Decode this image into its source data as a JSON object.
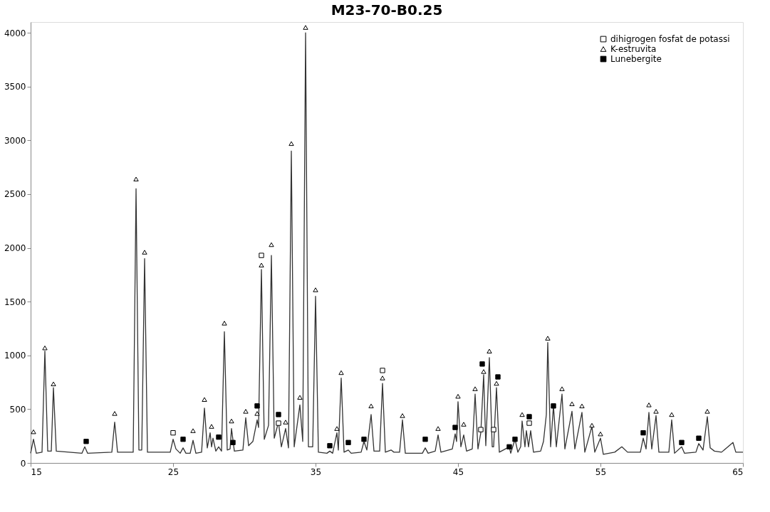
{
  "chart_data": {
    "type": "line",
    "title": "M23-70-B0.25",
    "xlim": [
      15,
      65
    ],
    "xticks": [
      15,
      25,
      35,
      45,
      55,
      65
    ],
    "ylim": [
      0,
      4100
    ],
    "yticks": [
      0,
      500,
      1000,
      1500,
      2000,
      2500,
      3000,
      3500,
      4000
    ],
    "grid": false,
    "legend": "top right",
    "series": [
      {
        "color": "#333333",
        "marker": "none",
        "x": [
          15.0,
          15.2,
          15.4,
          15.8,
          16.0,
          16.2,
          16.45,
          16.6,
          16.8,
          18.6,
          18.8,
          19.0,
          20.7,
          20.9,
          21.1,
          22.2,
          22.4,
          22.6,
          22.8,
          23.0,
          23.2,
          24.8,
          25.0,
          25.2,
          25.5,
          25.7,
          25.9,
          26.2,
          26.4,
          26.6,
          27.0,
          27.2,
          27.4,
          27.6,
          27.7,
          27.8,
          28.0,
          28.2,
          28.4,
          28.6,
          28.8,
          29.0,
          29.1,
          29.3,
          29.9,
          30.1,
          30.3,
          30.6,
          30.9,
          31.0,
          31.2,
          31.4,
          31.7,
          31.9,
          32.1,
          32.4,
          32.6,
          32.9,
          33.1,
          33.3,
          33.5,
          33.9,
          34.1,
          34.3,
          34.5,
          34.8,
          35.0,
          35.2,
          35.8,
          36.0,
          36.2,
          36.5,
          36.6,
          36.8,
          37.0,
          37.3,
          37.5,
          38.2,
          38.4,
          38.6,
          38.9,
          39.1,
          39.5,
          39.7,
          39.9,
          40.3,
          40.5,
          40.9,
          41.1,
          41.3,
          42.5,
          42.7,
          42.9,
          43.4,
          43.6,
          43.8,
          44.6,
          44.8,
          44.9,
          45.0,
          45.2,
          45.4,
          45.6,
          46.0,
          46.2,
          46.4,
          46.6,
          46.8,
          46.95,
          47.2,
          47.4,
          47.5,
          47.7,
          47.9,
          48.6,
          48.7,
          49.0,
          49.2,
          49.4,
          49.5,
          49.7,
          49.8,
          49.95,
          50.1,
          50.3,
          50.8,
          51.0,
          51.2,
          51.3,
          51.5,
          51.7,
          51.9,
          52.3,
          52.5,
          53.0,
          53.2,
          53.7,
          53.9,
          54.4,
          54.6,
          55.0,
          55.2,
          56.0,
          56.5,
          56.9,
          57.8,
          58.0,
          58.2,
          58.4,
          58.6,
          58.9,
          59.1,
          59.8,
          60.0,
          60.2,
          60.7,
          60.9,
          61.7,
          61.9,
          62.2,
          62.5,
          62.7,
          63.0,
          63.5,
          64.3,
          64.5,
          65.0
        ],
        "values": [
          90,
          220,
          90,
          100,
          1040,
          110,
          110,
          700,
          110,
          90,
          150,
          90,
          100,
          380,
          100,
          100,
          2550,
          120,
          120,
          1900,
          100,
          100,
          220,
          130,
          90,
          140,
          90,
          90,
          210,
          90,
          100,
          510,
          140,
          280,
          150,
          230,
          110,
          150,
          110,
          1220,
          120,
          130,
          320,
          110,
          120,
          420,
          160,
          200,
          400,
          330,
          1800,
          220,
          350,
          1930,
          230,
          380,
          150,
          320,
          140,
          2900,
          150,
          540,
          200,
          4000,
          150,
          150,
          1550,
          100,
          90,
          110,
          90,
          280,
          120,
          790,
          100,
          120,
          90,
          100,
          200,
          120,
          450,
          110,
          110,
          740,
          100,
          120,
          100,
          100,
          400,
          90,
          90,
          140,
          90,
          110,
          260,
          100,
          130,
          270,
          200,
          570,
          150,
          260,
          110,
          130,
          640,
          130,
          280,
          820,
          160,
          980,
          150,
          150,
          700,
          100,
          150,
          90,
          220,
          100,
          150,
          390,
          150,
          300,
          150,
          300,
          100,
          110,
          200,
          450,
          1120,
          150,
          530,
          150,
          640,
          130,
          480,
          130,
          470,
          100,
          340,
          100,
          230,
          80,
          100,
          150,
          100,
          100,
          230,
          130,
          470,
          130,
          440,
          100,
          100,
          400,
          90,
          150,
          90,
          100,
          180,
          120,
          430,
          140,
          110,
          100,
          190,
          100,
          100
        ]
      },
      {
        "type": "scatter",
        "name": "dihigrogen fosfat de potassi",
        "color": "#ffffff",
        "marker": "square",
        "x": [
          25.0,
          31.2,
          32.4,
          39.7,
          46.6,
          47.5,
          50.0
        ],
        "values": [
          280,
          1930,
          370,
          860,
          310,
          310,
          370
        ]
      },
      {
        "type": "scatter",
        "name": "K-estruvita",
        "color": "#ffffff",
        "marker": "triangle",
        "x": [
          15.2,
          16.0,
          16.6,
          20.9,
          22.4,
          23.0,
          26.4,
          27.2,
          27.7,
          28.6,
          29.1,
          30.1,
          30.9,
          31.2,
          31.9,
          32.9,
          33.3,
          33.9,
          34.3,
          35.0,
          36.5,
          36.8,
          38.9,
          39.7,
          41.1,
          43.6,
          45.0,
          45.4,
          46.2,
          46.8,
          47.2,
          47.7,
          49.5,
          51.3,
          52.3,
          53.0,
          53.7,
          54.4,
          55.0,
          58.4,
          58.9,
          60.0,
          62.5
        ],
        "values": [
          290,
          1070,
          735,
          460,
          2640,
          1960,
          300,
          590,
          340,
          1300,
          390,
          480,
          460,
          1840,
          2030,
          380,
          2970,
          610,
          4050,
          1610,
          320,
          840,
          530,
          790,
          440,
          320,
          620,
          360,
          690,
          850,
          1040,
          740,
          450,
          1160,
          690,
          550,
          530,
          350,
          270,
          540,
          480,
          450,
          480
        ]
      },
      {
        "type": "scatter",
        "name": "Lunebergite",
        "color": "#000000",
        "marker": "square",
        "x": [
          18.9,
          25.7,
          28.2,
          29.2,
          30.9,
          32.4,
          36.0,
          37.3,
          38.4,
          42.7,
          44.8,
          46.7,
          47.8,
          48.6,
          49.0,
          50.0,
          51.7,
          58.0,
          60.7,
          61.9
        ],
        "values": [
          200,
          220,
          240,
          190,
          530,
          450,
          160,
          190,
          220,
          220,
          330,
          920,
          800,
          150,
          220,
          430,
          530,
          280,
          190,
          230
        ]
      }
    ]
  }
}
